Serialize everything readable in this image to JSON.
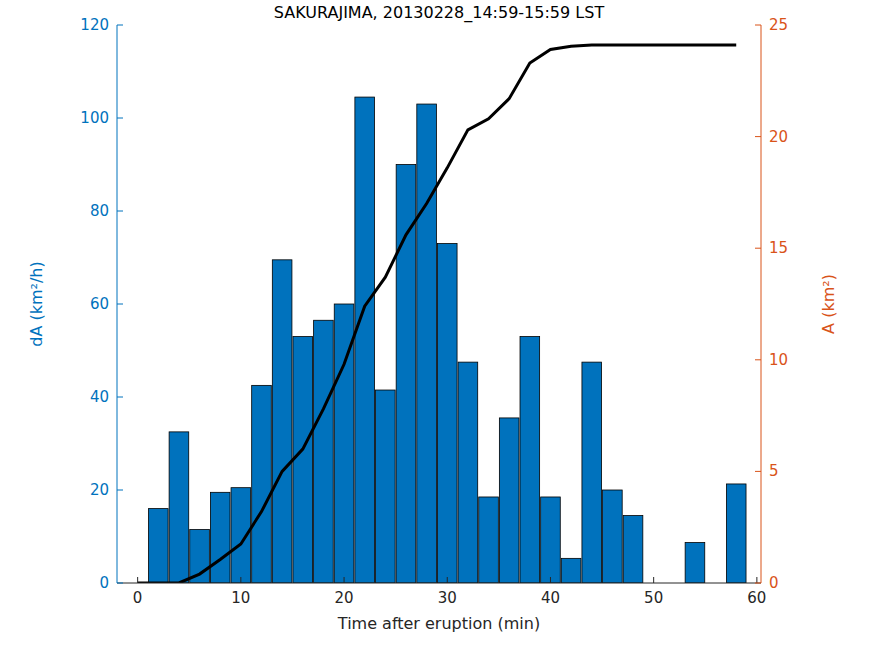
{
  "chart_data": {
    "type": "bar",
    "title": "SAKURAJIMA, 20130228_14:59-15:59 LST",
    "x_label": "Time after eruption (min)",
    "y_label": "dA (km²/h)",
    "y2_label": "A (km²)",
    "xlim": [
      -2,
      60.4
    ],
    "xticks": [
      0,
      10,
      20,
      30,
      40,
      50,
      60
    ],
    "ylim": [
      0,
      120
    ],
    "yticks": [
      0,
      20,
      40,
      60,
      80,
      100,
      120
    ],
    "y2lim": [
      0,
      25
    ],
    "y2ticks": [
      0,
      5,
      10,
      15,
      20,
      25
    ],
    "grid": false,
    "series": [
      {
        "type": "bar",
        "color": "#0072bd",
        "x": [
          2,
          4,
          6,
          8,
          10,
          12,
          14,
          16,
          18,
          20,
          22,
          24,
          26,
          28,
          30,
          32,
          34,
          36,
          38,
          40,
          42,
          44,
          46,
          48,
          50,
          52,
          54,
          56,
          58
        ],
        "values": [
          16,
          32.5,
          11.5,
          19.5,
          20.5,
          42.5,
          69.5,
          53,
          56.5,
          60,
          104.5,
          41.5,
          90,
          103,
          73,
          47.5,
          18.5,
          35.5,
          53,
          18.5,
          5.3,
          47.5,
          20,
          14.5,
          0,
          0,
          8.7,
          0,
          21.3
        ]
      },
      {
        "type": "line",
        "axis": "y2",
        "color": "#000000",
        "x": [
          0,
          2,
          4,
          6,
          8,
          10,
          12,
          14,
          16,
          18,
          20,
          22,
          24,
          26,
          28,
          30,
          32,
          34,
          36,
          38,
          40,
          42,
          44,
          46,
          48,
          50,
          52,
          54,
          56,
          58
        ],
        "values": [
          0,
          0,
          0,
          0.4,
          1.05,
          1.75,
          3.2,
          5.0,
          6.0,
          7.8,
          9.8,
          12.4,
          13.7,
          15.6,
          17.0,
          18.6,
          20.3,
          20.8,
          21.7,
          23.3,
          23.9,
          24.05,
          24.1,
          24.1,
          24.1,
          24.1,
          24.1,
          24.1,
          24.1,
          24.1
        ]
      }
    ]
  }
}
